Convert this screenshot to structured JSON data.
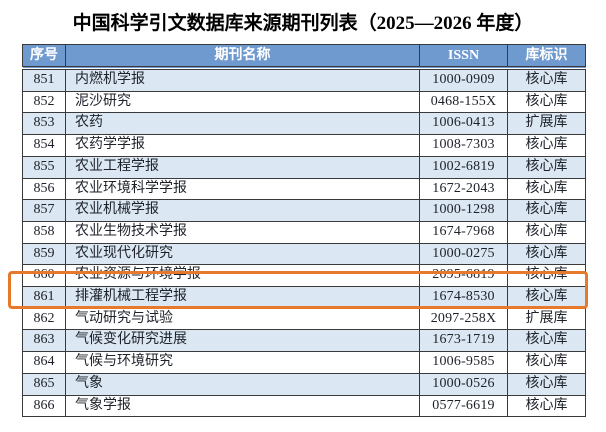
{
  "title": "中国科学引文数据库来源期刊列表（2025—2026 年度）",
  "table": {
    "columns": [
      "序号",
      "期刊名称",
      "ISSN",
      "库标识"
    ],
    "rows": [
      {
        "no": "851",
        "name": "内燃机学报",
        "issn": "1000-0909",
        "db": "核心库"
      },
      {
        "no": "852",
        "name": "泥沙研究",
        "issn": "0468-155X",
        "db": "核心库"
      },
      {
        "no": "853",
        "name": "农药",
        "issn": "1006-0413",
        "db": "扩展库"
      },
      {
        "no": "854",
        "name": "农药学学报",
        "issn": "1008-7303",
        "db": "核心库"
      },
      {
        "no": "855",
        "name": "农业工程学报",
        "issn": "1002-6819",
        "db": "核心库"
      },
      {
        "no": "856",
        "name": "农业环境科学学报",
        "issn": "1672-2043",
        "db": "核心库"
      },
      {
        "no": "857",
        "name": "农业机械学报",
        "issn": "1000-1298",
        "db": "核心库"
      },
      {
        "no": "858",
        "name": "农业生物技术学报",
        "issn": "1674-7968",
        "db": "核心库"
      },
      {
        "no": "859",
        "name": "农业现代化研究",
        "issn": "1000-0275",
        "db": "核心库"
      },
      {
        "no": "860",
        "name": "农业资源与环境学报",
        "issn": "2095-6819",
        "db": "核心库"
      },
      {
        "no": "861",
        "name": "排灌机械工程学报",
        "issn": "1674-8530",
        "db": "核心库"
      },
      {
        "no": "862",
        "name": "气动研究与试验",
        "issn": "2097-258X",
        "db": "扩展库"
      },
      {
        "no": "863",
        "name": "气候变化研究进展",
        "issn": "1673-1719",
        "db": "核心库"
      },
      {
        "no": "864",
        "name": "气候与环境研究",
        "issn": "1006-9585",
        "db": "核心库"
      },
      {
        "no": "865",
        "name": "气象",
        "issn": "1000-0526",
        "db": "核心库"
      },
      {
        "no": "866",
        "name": "气象学报",
        "issn": "0577-6619",
        "db": "核心库"
      }
    ],
    "highlighted_row_no": "861"
  },
  "colors": {
    "header_bg": "#6f9ad0",
    "row_alt_bg": "#dbe7f3",
    "border": "#3a3a3a",
    "highlight_border": "#e7792c",
    "text": "#1d2129"
  }
}
